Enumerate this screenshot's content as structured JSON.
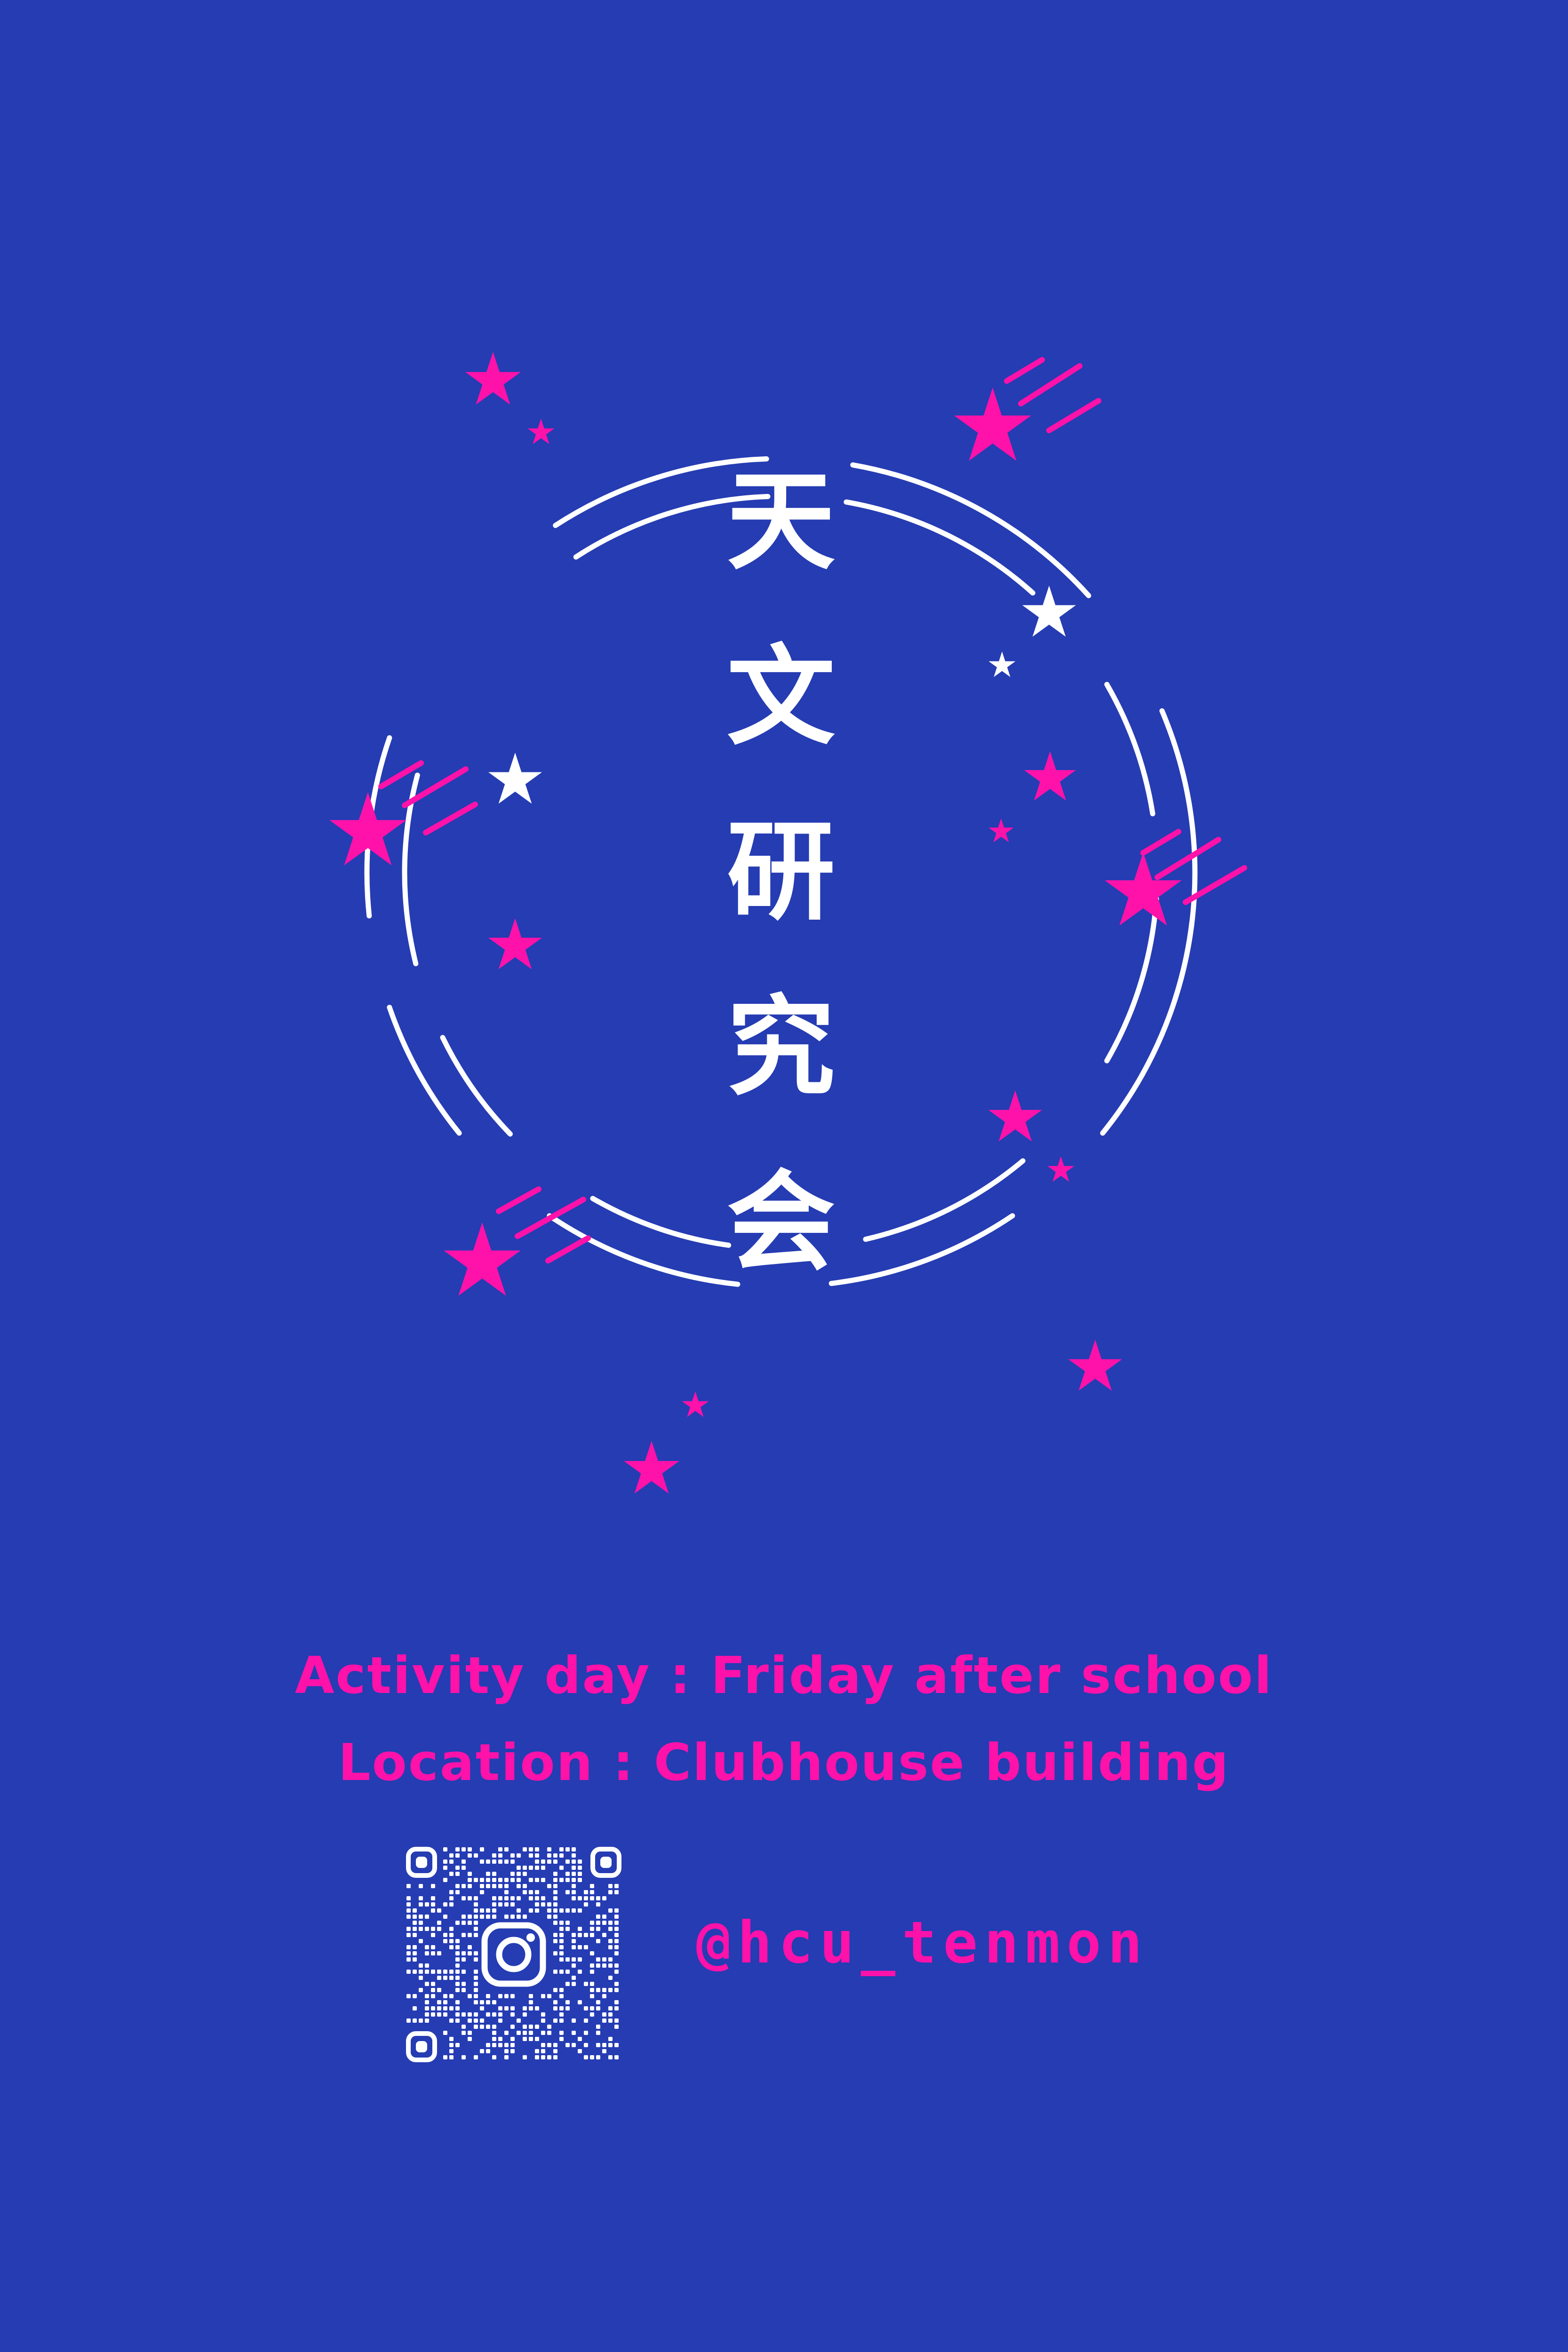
{
  "theme": {
    "background": "#253CB3",
    "accent": "#FF12A9",
    "line": "#FFFFFF"
  },
  "title": {
    "chars": [
      "天",
      "文",
      "研",
      "究",
      "会"
    ]
  },
  "info": {
    "activity_line": "Activity day : Friday after school",
    "location_line": "Location : Clubhouse building"
  },
  "social": {
    "qr_icon": "instagram-icon",
    "handle": "@hcu_tenmon"
  }
}
